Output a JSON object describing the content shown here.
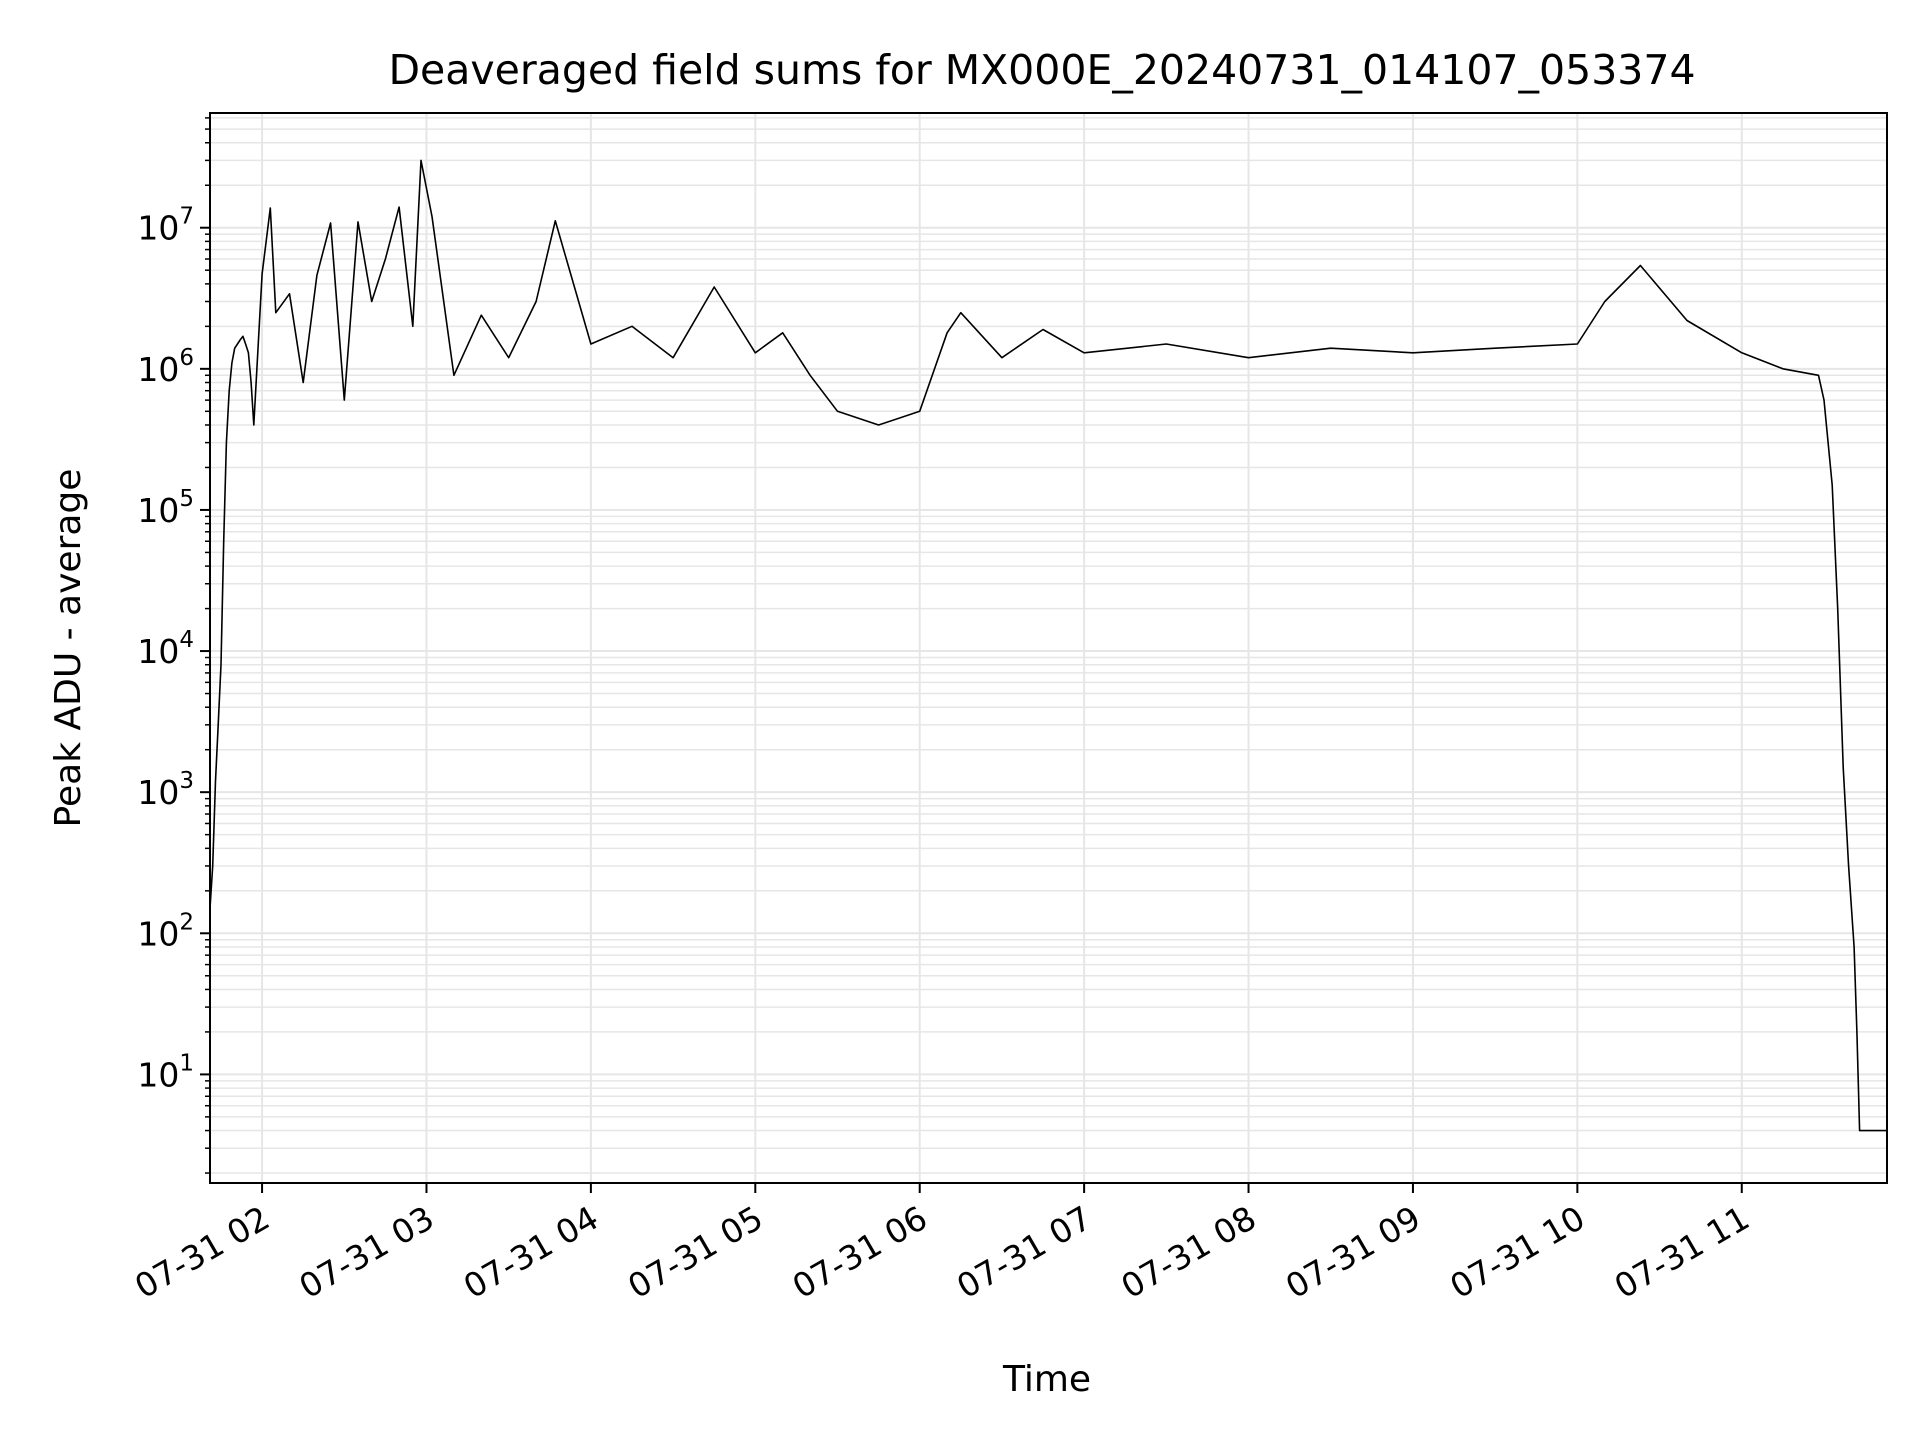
{
  "chart_data": {
    "type": "line",
    "title": "Deaveraged field sums for MX000E_20240731_014107_053374",
    "xlabel": "Time",
    "ylabel": "Peak ADU - average",
    "yscale": "log",
    "grid": true,
    "legend": "none",
    "colors": {
      "line": "#000000",
      "grid": "#e6e6e6",
      "axes": "#000000"
    },
    "xlim": [
      "2024-07-31 01:41",
      "2024-07-31 11:53"
    ],
    "ylim": [
      1.7,
      65000000
    ],
    "x_ticks": [
      {
        "value": "2024-07-31 02:00",
        "label": "07-31 02"
      },
      {
        "value": "2024-07-31 03:00",
        "label": "07-31 03"
      },
      {
        "value": "2024-07-31 04:00",
        "label": "07-31 04"
      },
      {
        "value": "2024-07-31 05:00",
        "label": "07-31 05"
      },
      {
        "value": "2024-07-31 06:00",
        "label": "07-31 06"
      },
      {
        "value": "2024-07-31 07:00",
        "label": "07-31 07"
      },
      {
        "value": "2024-07-31 08:00",
        "label": "07-31 08"
      },
      {
        "value": "2024-07-31 09:00",
        "label": "07-31 09"
      },
      {
        "value": "2024-07-31 10:00",
        "label": "07-31 10"
      },
      {
        "value": "2024-07-31 11:00",
        "label": "07-31 11"
      }
    ],
    "y_ticks": [
      {
        "value": 10,
        "base": "10",
        "exp": "1"
      },
      {
        "value": 100,
        "base": "10",
        "exp": "2"
      },
      {
        "value": 1000,
        "base": "10",
        "exp": "3"
      },
      {
        "value": 10000,
        "base": "10",
        "exp": "4"
      },
      {
        "value": 100000,
        "base": "10",
        "exp": "5"
      },
      {
        "value": 1000000,
        "base": "10",
        "exp": "6"
      },
      {
        "value": 10000000,
        "base": "10",
        "exp": "7"
      }
    ],
    "series": [
      {
        "points": [
          [
            "2024-07-31 01:41",
            150
          ],
          [
            "2024-07-31 01:42",
            300
          ],
          [
            "2024-07-31 01:43",
            1200
          ],
          [
            "2024-07-31 01:44",
            3000
          ],
          [
            "2024-07-31 01:45",
            8000
          ],
          [
            "2024-07-31 01:46",
            60000
          ],
          [
            "2024-07-31 01:47",
            300000
          ],
          [
            "2024-07-31 01:48",
            700000
          ],
          [
            "2024-07-31 01:49",
            1100000
          ],
          [
            "2024-07-31 01:50",
            1400000
          ],
          [
            "2024-07-31 01:52",
            1600000
          ],
          [
            "2024-07-31 01:53",
            1700000
          ],
          [
            "2024-07-31 01:54",
            1500000
          ],
          [
            "2024-07-31 01:55",
            1300000
          ],
          [
            "2024-07-31 01:56",
            800000
          ],
          [
            "2024-07-31 01:57",
            400000
          ],
          [
            "2024-07-31 02:00",
            4700000
          ],
          [
            "2024-07-31 02:03",
            13800000
          ],
          [
            "2024-07-31 02:05",
            2500000
          ],
          [
            "2024-07-31 02:10",
            3400000
          ],
          [
            "2024-07-31 02:15",
            800000
          ],
          [
            "2024-07-31 02:20",
            4600000
          ],
          [
            "2024-07-31 02:25",
            10800000
          ],
          [
            "2024-07-31 02:30",
            600000
          ],
          [
            "2024-07-31 02:35",
            11000000
          ],
          [
            "2024-07-31 02:40",
            3000000
          ],
          [
            "2024-07-31 02:45",
            6000000
          ],
          [
            "2024-07-31 02:50",
            14000000
          ],
          [
            "2024-07-31 02:55",
            2000000
          ],
          [
            "2024-07-31 02:58",
            30000000
          ],
          [
            "2024-07-31 03:02",
            12000000
          ],
          [
            "2024-07-31 03:10",
            900000
          ],
          [
            "2024-07-31 03:20",
            2400000
          ],
          [
            "2024-07-31 03:30",
            1200000
          ],
          [
            "2024-07-31 03:40",
            3000000
          ],
          [
            "2024-07-31 03:47",
            11200000
          ],
          [
            "2024-07-31 04:00",
            1500000
          ],
          [
            "2024-07-31 04:15",
            2000000
          ],
          [
            "2024-07-31 04:30",
            1200000
          ],
          [
            "2024-07-31 04:45",
            3800000
          ],
          [
            "2024-07-31 05:00",
            1300000
          ],
          [
            "2024-07-31 05:10",
            1800000
          ],
          [
            "2024-07-31 05:20",
            900000
          ],
          [
            "2024-07-31 05:30",
            500000
          ],
          [
            "2024-07-31 05:45",
            400000
          ],
          [
            "2024-07-31 06:00",
            500000
          ],
          [
            "2024-07-31 06:10",
            1800000
          ],
          [
            "2024-07-31 06:15",
            2500000
          ],
          [
            "2024-07-31 06:30",
            1200000
          ],
          [
            "2024-07-31 06:45",
            1900000
          ],
          [
            "2024-07-31 07:00",
            1300000
          ],
          [
            "2024-07-31 07:30",
            1500000
          ],
          [
            "2024-07-31 08:00",
            1200000
          ],
          [
            "2024-07-31 08:30",
            1400000
          ],
          [
            "2024-07-31 09:00",
            1300000
          ],
          [
            "2024-07-31 09:30",
            1400000
          ],
          [
            "2024-07-31 10:00",
            1500000
          ],
          [
            "2024-07-31 10:10",
            3000000
          ],
          [
            "2024-07-31 10:23",
            5400000
          ],
          [
            "2024-07-31 10:40",
            2200000
          ],
          [
            "2024-07-31 11:00",
            1300000
          ],
          [
            "2024-07-31 11:15",
            1000000
          ],
          [
            "2024-07-31 11:28",
            900000
          ],
          [
            "2024-07-31 11:30",
            600000
          ],
          [
            "2024-07-31 11:33",
            150000
          ],
          [
            "2024-07-31 11:35",
            20000
          ],
          [
            "2024-07-31 11:37",
            1500
          ],
          [
            "2024-07-31 11:39",
            300
          ],
          [
            "2024-07-31 11:41",
            80
          ],
          [
            "2024-07-31 11:42",
            20
          ],
          [
            "2024-07-31 11:43",
            4
          ],
          [
            "2024-07-31 11:53",
            4
          ]
        ]
      }
    ]
  }
}
